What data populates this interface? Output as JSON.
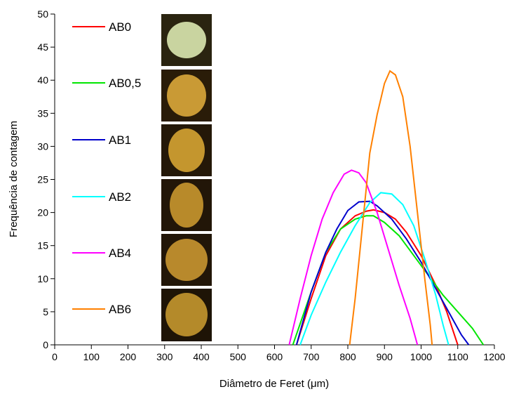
{
  "chart_data": {
    "type": "line",
    "x_label": "Diâmetro de Feret (μm)",
    "y_label": "Frequência de contagem",
    "xlim": [
      0,
      1200
    ],
    "xticks": [
      0,
      100,
      200,
      300,
      400,
      500,
      600,
      700,
      800,
      900,
      1000,
      1100,
      1200
    ],
    "ylim": [
      0,
      50
    ],
    "yticks": [
      0,
      5,
      10,
      15,
      20,
      25,
      30,
      35,
      40,
      45,
      50
    ],
    "series": [
      {
        "name": "AB0",
        "color": "#ff0000",
        "x": [
          660,
          700,
          740,
          780,
          820,
          850,
          870,
          900,
          930,
          960,
          1000,
          1040,
          1070,
          1100
        ],
        "values": [
          0,
          7,
          13.5,
          17.5,
          19.5,
          20.2,
          20.4,
          20,
          19,
          17,
          13.5,
          9,
          5,
          0
        ]
      },
      {
        "name": "AB0,5",
        "color": "#00e600",
        "x": [
          650,
          700,
          740,
          780,
          820,
          850,
          870,
          900,
          940,
          980,
          1020,
          1060,
          1100,
          1140,
          1170
        ],
        "values": [
          0,
          8,
          14,
          17.5,
          19,
          19.5,
          19.5,
          18.5,
          16.5,
          13.5,
          10.5,
          7.5,
          5,
          2.5,
          0
        ]
      },
      {
        "name": "AB1",
        "color": "#0000cc",
        "x": [
          660,
          700,
          740,
          770,
          800,
          830,
          860,
          880,
          920,
          960,
          1000,
          1040,
          1080,
          1110,
          1130
        ],
        "values": [
          0,
          8,
          14,
          17.5,
          20.3,
          21.6,
          21.7,
          21,
          19,
          16,
          12.5,
          8.5,
          4.5,
          1.5,
          0
        ]
      },
      {
        "name": "AB2",
        "color": "#00ffff",
        "x": [
          670,
          700,
          740,
          780,
          820,
          860,
          890,
          920,
          950,
          980,
          1010,
          1040,
          1060,
          1075
        ],
        "values": [
          0,
          4.5,
          9.5,
          14,
          18,
          21.5,
          23,
          22.8,
          21.2,
          18,
          13,
          7.5,
          3,
          0
        ]
      },
      {
        "name": "AB4",
        "color": "#ff00ff",
        "x": [
          640,
          670,
          700,
          730,
          760,
          790,
          810,
          830,
          850,
          880,
          910,
          940,
          970,
          990
        ],
        "values": [
          0,
          7,
          13.5,
          19,
          23,
          25.8,
          26.4,
          26,
          24.5,
          20,
          14.5,
          9,
          4,
          0
        ]
      },
      {
        "name": "AB6",
        "color": "#ff8000",
        "x": [
          805,
          820,
          840,
          860,
          880,
          900,
          915,
          930,
          950,
          970,
          990,
          1010,
          1025,
          1030
        ],
        "values": [
          0,
          7,
          18,
          29,
          34.8,
          39.5,
          41.4,
          40.8,
          37.5,
          30,
          20,
          10,
          3,
          0
        ]
      }
    ]
  }
}
